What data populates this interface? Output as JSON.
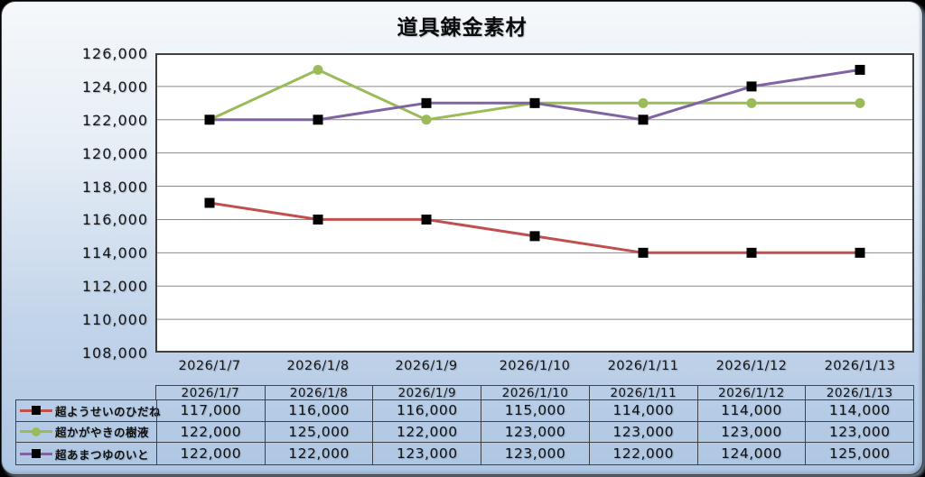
{
  "title": "道具錬金素材",
  "chart_data": {
    "type": "line",
    "title": "道具錬金素材",
    "categories": [
      "2026/1/7",
      "2026/1/8",
      "2026/1/9",
      "2026/1/10",
      "2026/1/11",
      "2026/1/12",
      "2026/1/13"
    ],
    "series": [
      {
        "name": "超ようせいのひだね",
        "color": "#c0504d",
        "marker": "square",
        "marker_color": "#000000",
        "values": [
          117000,
          116000,
          116000,
          115000,
          114000,
          114000,
          114000
        ]
      },
      {
        "name": "超かがやきの樹液",
        "color": "#9bbb59",
        "marker": "circle",
        "marker_color": "#9bbb59",
        "values": [
          122000,
          125000,
          122000,
          123000,
          123000,
          123000,
          123000
        ]
      },
      {
        "name": "超あまつゆのいと",
        "color": "#8064a2",
        "marker": "square",
        "marker_color": "#000000",
        "values": [
          122000,
          122000,
          123000,
          123000,
          122000,
          124000,
          125000
        ]
      }
    ],
    "xlabel": "",
    "ylabel": "",
    "ylim": [
      108000,
      126000
    ],
    "ytick_step": 2000,
    "grid": true,
    "legend_position": "data-table-left"
  },
  "y_axis_tick_labels": [
    "126,000",
    "124,000",
    "122,000",
    "120,000",
    "118,000",
    "116,000",
    "114,000",
    "112,000",
    "110,000",
    "108,000"
  ],
  "data_table": {
    "header_dates": [
      "2026/1/7",
      "2026/1/8",
      "2026/1/9",
      "2026/1/10",
      "2026/1/11",
      "2026/1/12",
      "2026/1/13"
    ],
    "rows": [
      {
        "label": "超ようせいのひだね",
        "values": [
          "117,000",
          "116,000",
          "116,000",
          "115,000",
          "114,000",
          "114,000",
          "114,000"
        ]
      },
      {
        "label": "超かがやきの樹液",
        "values": [
          "122,000",
          "125,000",
          "122,000",
          "123,000",
          "123,000",
          "123,000",
          "123,000"
        ]
      },
      {
        "label": "超あまつゆのいと",
        "values": [
          "122,000",
          "122,000",
          "123,000",
          "123,000",
          "122,000",
          "124,000",
          "125,000"
        ]
      }
    ]
  },
  "colors": {
    "series_red": "#c0504d",
    "series_green": "#9bbb59",
    "series_purple": "#8064a2",
    "marker_black": "#000000",
    "background_top": "#f5f8fb",
    "background_bottom": "#aec6e2",
    "plot_background": "#ffffff",
    "gridline": "#8a8a8a",
    "plot_border": "#3f3f3f",
    "table_border": "#3f4247",
    "text": "#101010"
  }
}
